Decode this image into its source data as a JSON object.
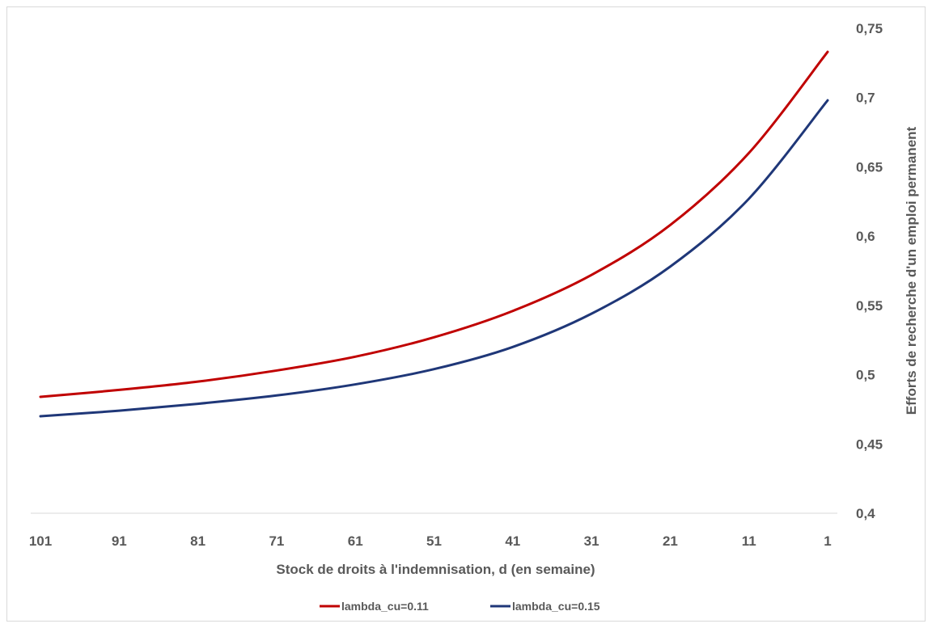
{
  "chart_data": {
    "type": "line",
    "xlabel": "Stock de droits à l'indemnisation, d (en semaine)",
    "ylabel": "Efforts de recherche d'un emploi permanent",
    "x_reversed": true,
    "y_axis_side": "right",
    "ylim": [
      0.4,
      0.75
    ],
    "xlim": [
      101,
      1
    ],
    "x_ticks": [
      "101",
      "91",
      "81",
      "71",
      "61",
      "51",
      "41",
      "31",
      "21",
      "11",
      "1"
    ],
    "y_ticks": [
      "0,4",
      "0,45",
      "0,5",
      "0,55",
      "0,6",
      "0,65",
      "0,7",
      "0,75"
    ],
    "legend_position": "bottom",
    "grid": false,
    "x": [
      101,
      91,
      81,
      71,
      61,
      51,
      41,
      31,
      21,
      11,
      1
    ],
    "series": [
      {
        "name": "lambda_cu=0.11",
        "color": "#c00000",
        "values": [
          0.484,
          0.489,
          0.495,
          0.503,
          0.513,
          0.527,
          0.546,
          0.572,
          0.608,
          0.66,
          0.733
        ]
      },
      {
        "name": "lambda_cu=0.15",
        "color": "#1f3778",
        "values": [
          0.47,
          0.474,
          0.479,
          0.485,
          0.493,
          0.504,
          0.52,
          0.544,
          0.578,
          0.627,
          0.698
        ]
      }
    ]
  }
}
